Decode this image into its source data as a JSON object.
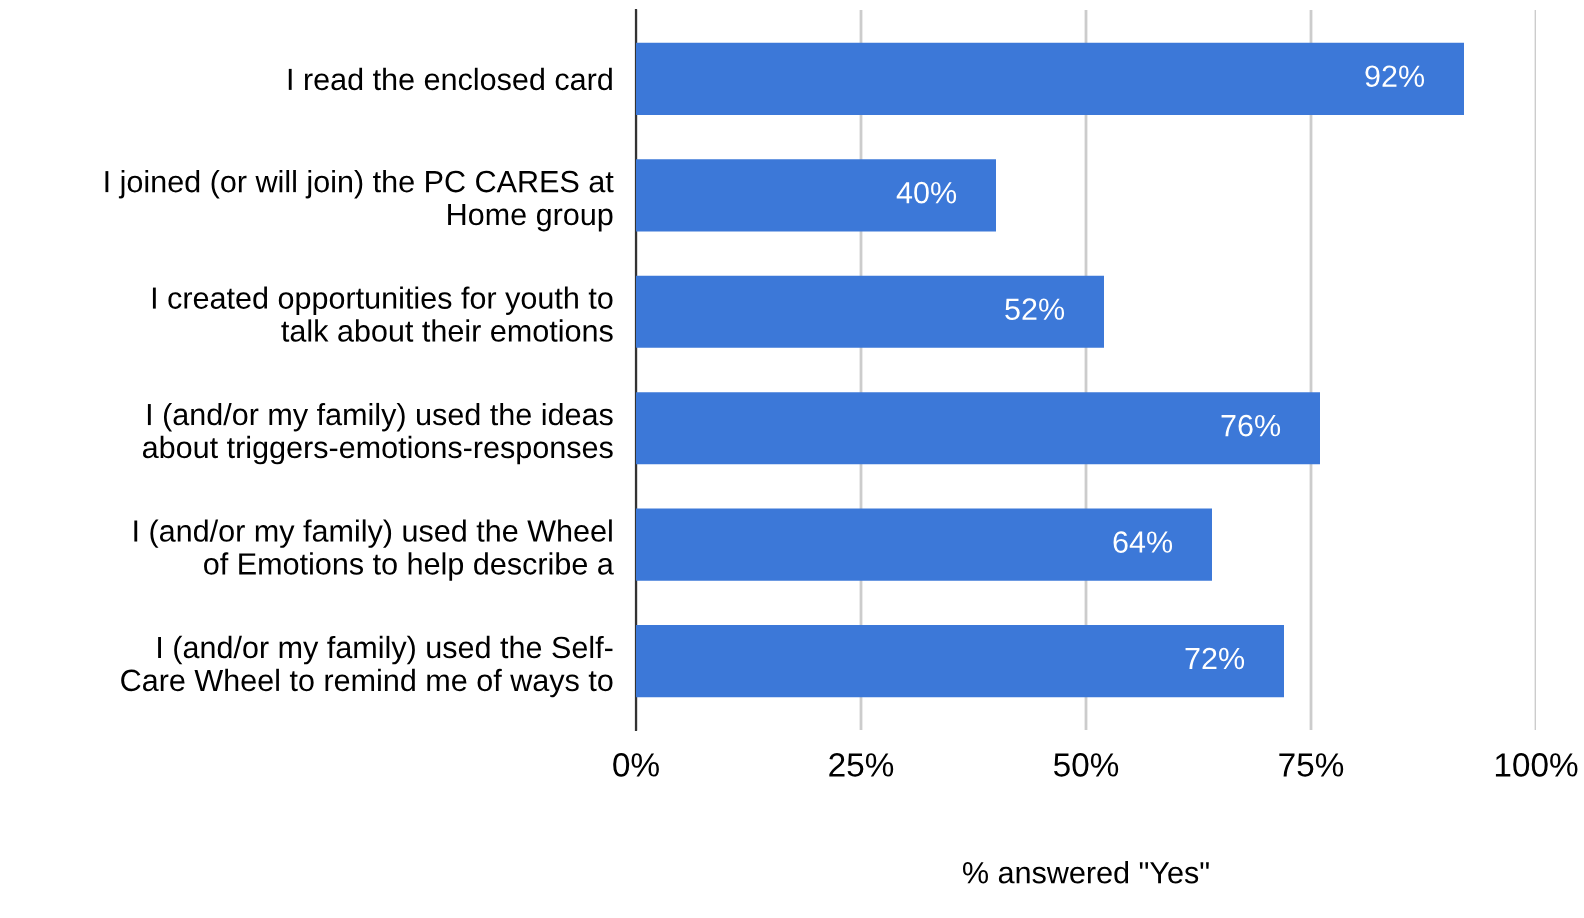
{
  "chart_data": {
    "type": "bar",
    "orientation": "horizontal",
    "categories": [
      "I read the enclosed card",
      "I joined (or will join) the PC CARES at\nHome group",
      "I created opportunities for youth to\ntalk about their emotions",
      "I (and/or my family) used the ideas\nabout triggers-emotions-responses",
      "I (and/or my family) used the Wheel\nof Emotions to help describe a",
      "I (and/or my family) used the Self-\nCare Wheel to remind me of ways to"
    ],
    "values": [
      92,
      40,
      52,
      76,
      64,
      72
    ],
    "value_labels": [
      "92%",
      "40%",
      "52%",
      "76%",
      "64%",
      "72%"
    ],
    "color": "#3c78d8",
    "xlabel": "% answered \"Yes\"",
    "xlim": [
      0,
      100
    ],
    "xticks": [
      {
        "value": 0,
        "label": "0%"
      },
      {
        "value": 25,
        "label": "25%"
      },
      {
        "value": 50,
        "label": "50%"
      },
      {
        "value": 75,
        "label": "75%"
      },
      {
        "value": 100,
        "label": "100%"
      }
    ],
    "grid": "x"
  }
}
